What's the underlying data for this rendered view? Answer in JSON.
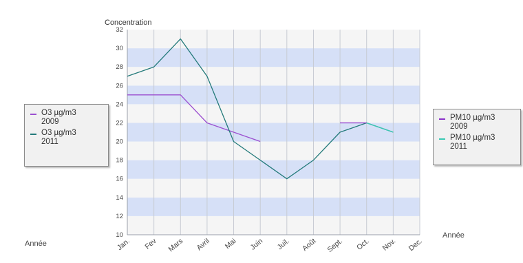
{
  "chart_data": {
    "type": "line",
    "ylabel": "Concentration",
    "xlabel": "Année",
    "ylim": [
      10,
      32
    ],
    "yticks": [
      10,
      12,
      14,
      16,
      18,
      20,
      22,
      24,
      26,
      28,
      30,
      32
    ],
    "categories": [
      "Jan.",
      "Fev",
      "Mars",
      "Avril",
      "Mai",
      "Juin",
      "Juil.",
      "Août",
      "Sept.",
      "Oct.",
      "Nov.",
      "Dec."
    ],
    "grid": "alternating horizontal bands",
    "series": [
      {
        "name": "O3 µg/m3\n2009",
        "color": "#9b4fd0",
        "values": [
          25,
          25,
          25,
          22,
          21,
          20,
          null,
          null,
          null,
          null,
          null,
          null
        ]
      },
      {
        "name": "O3 µg/m3\n2011",
        "color": "#237a7a",
        "values": [
          27,
          28,
          31,
          27,
          20,
          18,
          16,
          18,
          21,
          22,
          21,
          null
        ]
      },
      {
        "name": "PM10 µg/m3\n2009",
        "color": "#8a2fc9",
        "values": [
          null,
          null,
          null,
          null,
          null,
          null,
          null,
          null,
          22,
          22,
          null,
          null
        ]
      },
      {
        "name": "PM10 µg/m3\n2011",
        "color": "#38c9b3",
        "values": [
          null,
          null,
          null,
          null,
          null,
          null,
          null,
          null,
          null,
          22,
          21,
          null
        ]
      }
    ],
    "legends": [
      {
        "placement": "left",
        "entries": [
          0,
          1
        ]
      },
      {
        "placement": "right",
        "entries": [
          2,
          3
        ]
      }
    ],
    "colors": {
      "band": "#d6e0f7",
      "band_alt": "#f5f5f5",
      "grid": "#c7cbd3"
    }
  }
}
